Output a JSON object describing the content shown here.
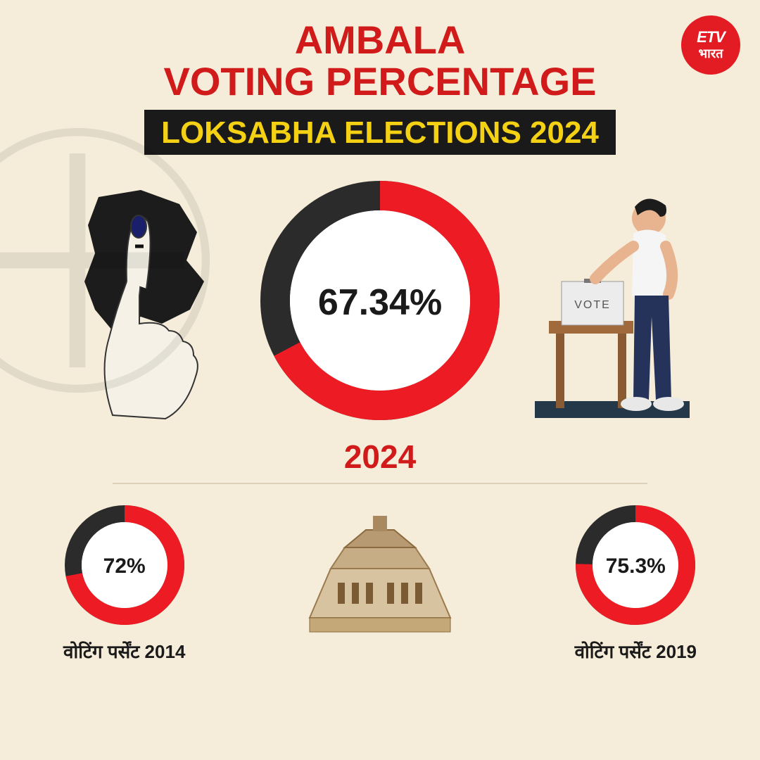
{
  "logo": {
    "top": "ETV",
    "bottom": "भारत",
    "bg_color": "#e31b23",
    "text_color": "#ffffff"
  },
  "title": {
    "line1": "AMBALA",
    "line2": "VOTING PERCENTAGE",
    "color": "#d11a1a",
    "subtitle": "LOKSABHA ELECTIONS 2024",
    "subtitle_color": "#f5d114",
    "subtitle_bg": "#1a1a1a"
  },
  "main_chart": {
    "type": "donut",
    "value": 67.34,
    "display": "67.34%",
    "year_label": "2024",
    "year_color": "#d11a1a",
    "size": 340,
    "ring_width": 42,
    "primary_color": "#ed1c24",
    "secondary_color": "#2b2b2b",
    "inner_fill": "#ffffff",
    "center_fontsize": 52
  },
  "small_charts": [
    {
      "type": "donut",
      "value": 72,
      "display": "72%",
      "label": "वोटिंग पर्सेंट 2014",
      "size": 170,
      "ring_width": 24,
      "primary_color": "#ed1c24",
      "secondary_color": "#2b2b2b",
      "inner_fill": "#ffffff"
    },
    {
      "type": "donut",
      "value": 75.3,
      "display": "75.3%",
      "label": "वोटिंग पर्सेंट 2019",
      "size": 170,
      "ring_width": 24,
      "primary_color": "#ed1c24",
      "secondary_color": "#2b2b2b",
      "inner_fill": "#ffffff"
    }
  ],
  "vote_box_label": "VOTE",
  "background_color": "#f5ecd9"
}
